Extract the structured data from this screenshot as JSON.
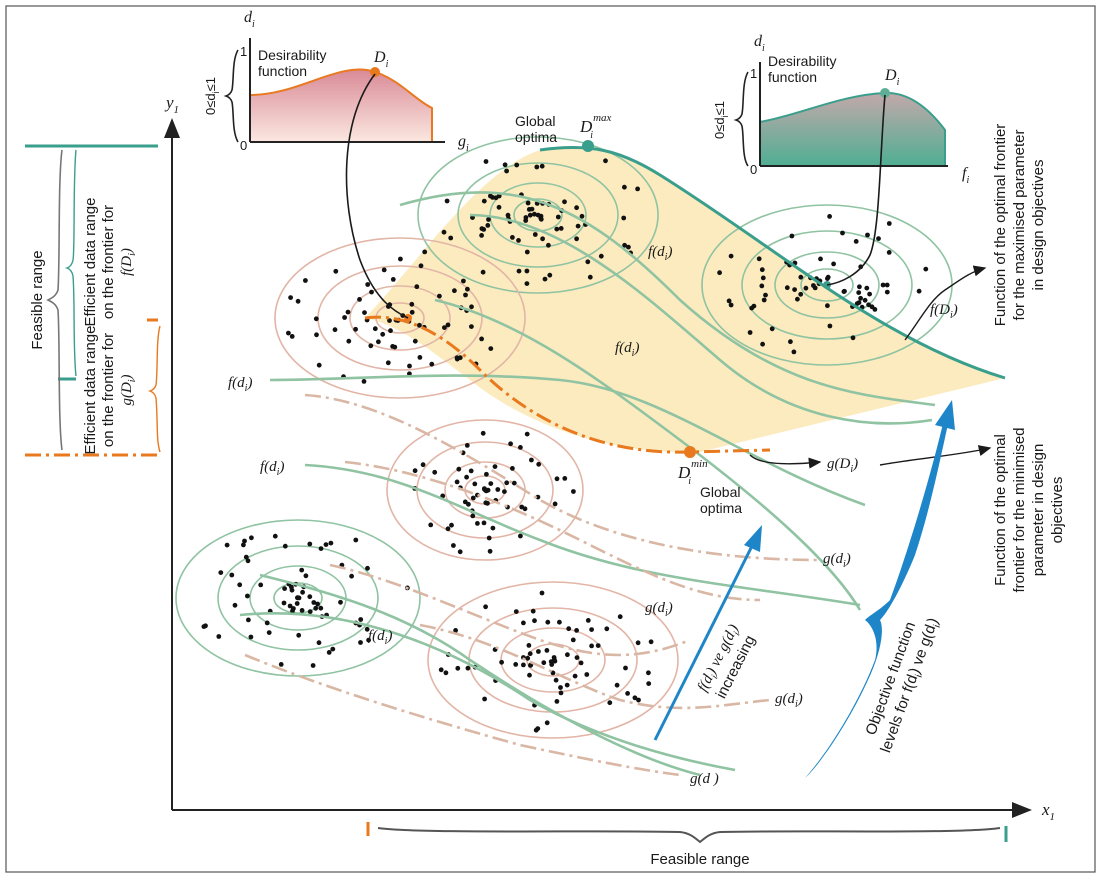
{
  "axes": {
    "x_label": "x",
    "x_sub": "1",
    "y_label": "y",
    "y_sub": "1"
  },
  "feasible_range_bottom": "Feasible range",
  "left_panel": {
    "feasible_range": "Feasible range",
    "efficient_f_line1": "Efficient data range",
    "efficient_f_line2": "on the frontier for",
    "efficient_f_line3": "f(D",
    "efficient_f_sub": "i",
    "efficient_f_close": ")",
    "efficient_g_line1": "Efficient data range",
    "efficient_g_line2": "on the frontier for",
    "efficient_g_line3": "g(D",
    "efficient_g_sub": "i",
    "efficient_g_close": ")"
  },
  "inset_left": {
    "axis_d": "d",
    "axis_d_sub": "i",
    "axis_g": "g",
    "axis_g_sub": "i",
    "tick_1": "1",
    "tick_0": "0",
    "range_label": "0≤d",
    "range_sub": "i",
    "range_end": "≤1",
    "title_line1": "Desirability",
    "title_line2": "function",
    "point_label": "D",
    "point_sub": "i"
  },
  "inset_right": {
    "axis_d": "d",
    "axis_d_sub": "i",
    "axis_f": "f",
    "axis_f_sub": "i",
    "tick_1": "1",
    "tick_0": "0",
    "range_label": "0≤d",
    "range_sub": "i",
    "range_end": "≤1",
    "title_line1": "Desirability",
    "title_line2": "function",
    "point_label": "D",
    "point_sub": "i"
  },
  "max_optimum": {
    "line1": "Global",
    "line2": "optima",
    "label": "D",
    "sub": "i",
    "sup": "max"
  },
  "min_optimum": {
    "line1": "Global",
    "line2": "optima",
    "label": "D",
    "sub": "i",
    "sup": "min"
  },
  "curve_labels": {
    "f": "f(d",
    "g": "g(d",
    "sub": "i",
    "close": ")",
    "g_bottom": "g(d )",
    "fD": "f(D",
    "gD": "g(D"
  },
  "right_text": {
    "max_line1": "Function of the optimal frontier",
    "max_line2": "for the maximised parameter",
    "max_line3": "in design objectives",
    "min_line1": "Function of the optimal",
    "min_line2": "frontier for the minimised",
    "min_line3": "parameter in design",
    "min_line4": "objectives"
  },
  "increasing_label": {
    "line1": "f(d",
    "line1b": ") ve g(d",
    "line1c": ")",
    "sub": "i",
    "line2": "increasing"
  },
  "objective_levels": {
    "line1": "Objective function",
    "line2": "levels for f(d",
    "line2b": ") ve g(d",
    "line2c": ")",
    "sub": "i"
  },
  "colors": {
    "teal": "#3a9e8c",
    "green_light": "#8fc3a2",
    "orange": "#e8791e",
    "tan": "#d9b7a4",
    "yellow_fill": "#fbe7b4",
    "blue": "#1e86c8",
    "pink_top": "#e3a7b0",
    "teal_inset": "#5fae98"
  }
}
